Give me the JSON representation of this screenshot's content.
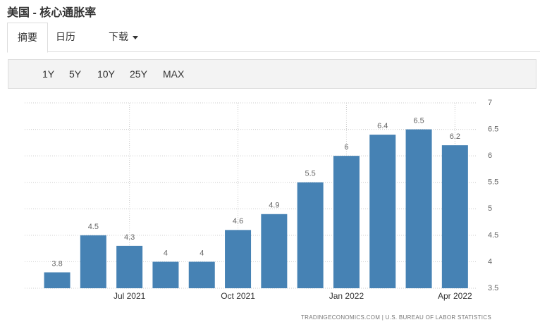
{
  "ui": {
    "page_title": "美国 - 核心通胀率",
    "tabs": [
      "摘要",
      "日历",
      "下载"
    ],
    "ranges": [
      "1Y",
      "5Y",
      "10Y",
      "25Y",
      "MAX"
    ]
  },
  "chart_data": {
    "type": "bar",
    "categories": [
      null,
      null,
      "Jul 2021",
      null,
      null,
      "Oct 2021",
      null,
      null,
      "Jan 2022",
      null,
      null,
      "Apr 2022"
    ],
    "values": [
      3.8,
      4.5,
      4.3,
      4,
      4,
      4.6,
      4.9,
      5.5,
      6,
      6.4,
      6.5,
      6.2
    ],
    "color": "#4682b4",
    "ylim": [
      3.5,
      7
    ],
    "yticks": [
      3.5,
      4,
      4.5,
      5,
      5.5,
      6,
      6.5,
      7
    ],
    "grid": true,
    "source": "TRADINGECONOMICS.COM  |  U.S. BUREAU OF LABOR STATISTICS"
  }
}
